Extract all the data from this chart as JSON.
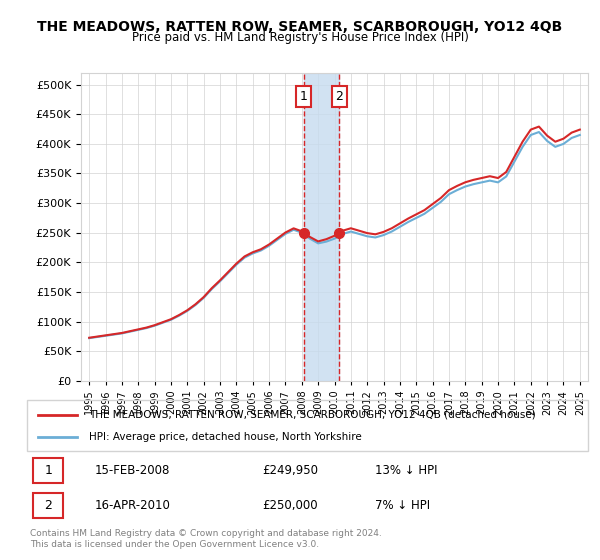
{
  "title": "THE MEADOWS, RATTEN ROW, SEAMER, SCARBOROUGH, YO12 4QB",
  "subtitle": "Price paid vs. HM Land Registry's House Price Index (HPI)",
  "hpi_years": [
    1995,
    1995.5,
    1996,
    1996.5,
    1997,
    1997.5,
    1998,
    1998.5,
    1999,
    1999.5,
    2000,
    2000.5,
    2001,
    2001.5,
    2002,
    2002.5,
    2003,
    2003.5,
    2004,
    2004.5,
    2005,
    2005.5,
    2006,
    2006.5,
    2007,
    2007.5,
    2008,
    2008.5,
    2009,
    2009.5,
    2010,
    2010.5,
    2011,
    2011.5,
    2012,
    2012.5,
    2013,
    2013.5,
    2014,
    2014.5,
    2015,
    2015.5,
    2016,
    2016.5,
    2017,
    2017.5,
    2018,
    2018.5,
    2019,
    2019.5,
    2020,
    2020.5,
    2021,
    2021.5,
    2022,
    2022.5,
    2023,
    2023.5,
    2024,
    2024.5,
    2025
  ],
  "hpi_values": [
    72000,
    74000,
    76000,
    78000,
    80000,
    83000,
    86000,
    89000,
    93000,
    98000,
    103000,
    110000,
    118000,
    128000,
    140000,
    155000,
    168000,
    182000,
    196000,
    208000,
    215000,
    220000,
    228000,
    238000,
    248000,
    255000,
    250000,
    240000,
    232000,
    235000,
    240000,
    248000,
    252000,
    248000,
    244000,
    242000,
    246000,
    252000,
    260000,
    268000,
    275000,
    282000,
    292000,
    302000,
    315000,
    322000,
    328000,
    332000,
    335000,
    338000,
    335000,
    345000,
    370000,
    395000,
    415000,
    420000,
    405000,
    395000,
    400000,
    410000,
    415000
  ],
  "sale_years": [
    2008.12,
    2010.29
  ],
  "sale_prices": [
    249950,
    250000
  ],
  "sale_labels": [
    "1",
    "2"
  ],
  "legend_line1": "THE MEADOWS, RATTEN ROW, SEAMER, SCARBOROUGH, YO12 4QB (detached house)",
  "legend_line2": "HPI: Average price, detached house, North Yorkshire",
  "table_rows": [
    {
      "num": "1",
      "date": "15-FEB-2008",
      "price": "£249,950",
      "hpi": "13% ↓ HPI"
    },
    {
      "num": "2",
      "date": "16-APR-2010",
      "price": "£250,000",
      "hpi": "7% ↓ HPI"
    }
  ],
  "footer": "Contains HM Land Registry data © Crown copyright and database right 2024.\nThis data is licensed under the Open Government Licence v3.0.",
  "hpi_color": "#6baed6",
  "sale_color": "#d62728",
  "highlight_color": "#c6dbef",
  "highlight_alpha": 0.5,
  "ylim": [
    0,
    520000
  ],
  "yticks": [
    0,
    50000,
    100000,
    150000,
    200000,
    250000,
    300000,
    350000,
    400000,
    450000,
    500000
  ],
  "xlim": [
    1994.5,
    2025.5
  ]
}
